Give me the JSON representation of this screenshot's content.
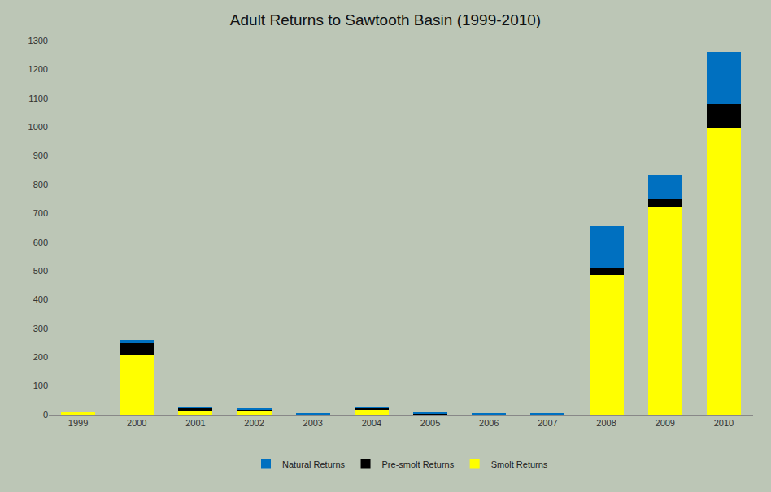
{
  "chart_data": {
    "type": "bar",
    "title": "Adult Returns to Sawtooth Basin (1999-2010)",
    "categories": [
      "1999",
      "2000",
      "2001",
      "2002",
      "2003",
      "2004",
      "2005",
      "2006",
      "2007",
      "2008",
      "2009",
      "2010"
    ],
    "series": [
      {
        "name": "Smolt Returns",
        "color": "#ffff00",
        "values": [
          8,
          210,
          15,
          10,
          0,
          18,
          2,
          0,
          0,
          485,
          720,
          995
        ]
      },
      {
        "name": "Pre-smolt Returns",
        "color": "#000000",
        "values": [
          0,
          40,
          10,
          8,
          2,
          6,
          2,
          2,
          1,
          25,
          30,
          85
        ]
      },
      {
        "name": "Natural Returns",
        "color": "#0070c0",
        "values": [
          0,
          10,
          2,
          4,
          3,
          5,
          4,
          4,
          3,
          145,
          85,
          180
        ]
      }
    ],
    "stacked": true,
    "ylim": [
      0,
      1300
    ],
    "yticks": [
      0,
      100,
      200,
      300,
      400,
      500,
      600,
      700,
      800,
      900,
      1000,
      1100,
      1200,
      1300
    ],
    "grid": false,
    "legend": "bottom"
  }
}
